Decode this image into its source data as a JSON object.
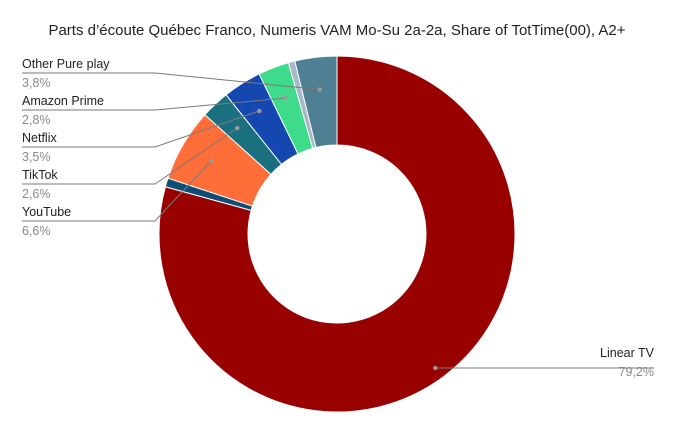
{
  "chart_data": {
    "type": "pie",
    "donut": true,
    "title": "Parts d’écoute Québec Franco, Numeris VAM Mo-Su 2a-2a, Share of TotTime(00), A2+",
    "start": "top",
    "direction": "clockwise",
    "slices": [
      {
        "name": "Linear TV",
        "value": 79.2,
        "label": "79,2%",
        "color": "#990000",
        "labelled": true
      },
      {
        "name": "",
        "value": 0.8,
        "label": "",
        "color": "#0e4d75",
        "labelled": false
      },
      {
        "name": "YouTube",
        "value": 6.6,
        "label": "6,6%",
        "color": "#ff6d38",
        "labelled": true
      },
      {
        "name": "TikTok",
        "value": 2.6,
        "label": "2,6%",
        "color": "#1b7080",
        "labelled": true
      },
      {
        "name": "Netflix",
        "value": 3.5,
        "label": "3,5%",
        "color": "#1448b0",
        "labelled": true
      },
      {
        "name": "Amazon Prime",
        "value": 2.8,
        "label": "2,8%",
        "color": "#3edb8a",
        "labelled": true
      },
      {
        "name": "",
        "value": 0.6,
        "label": "",
        "color": "#a7b9c9",
        "labelled": false
      },
      {
        "name": "Other Pure play",
        "value": 3.8,
        "label": "3,8%",
        "color": "#4f7f92",
        "labelled": true
      }
    ]
  }
}
